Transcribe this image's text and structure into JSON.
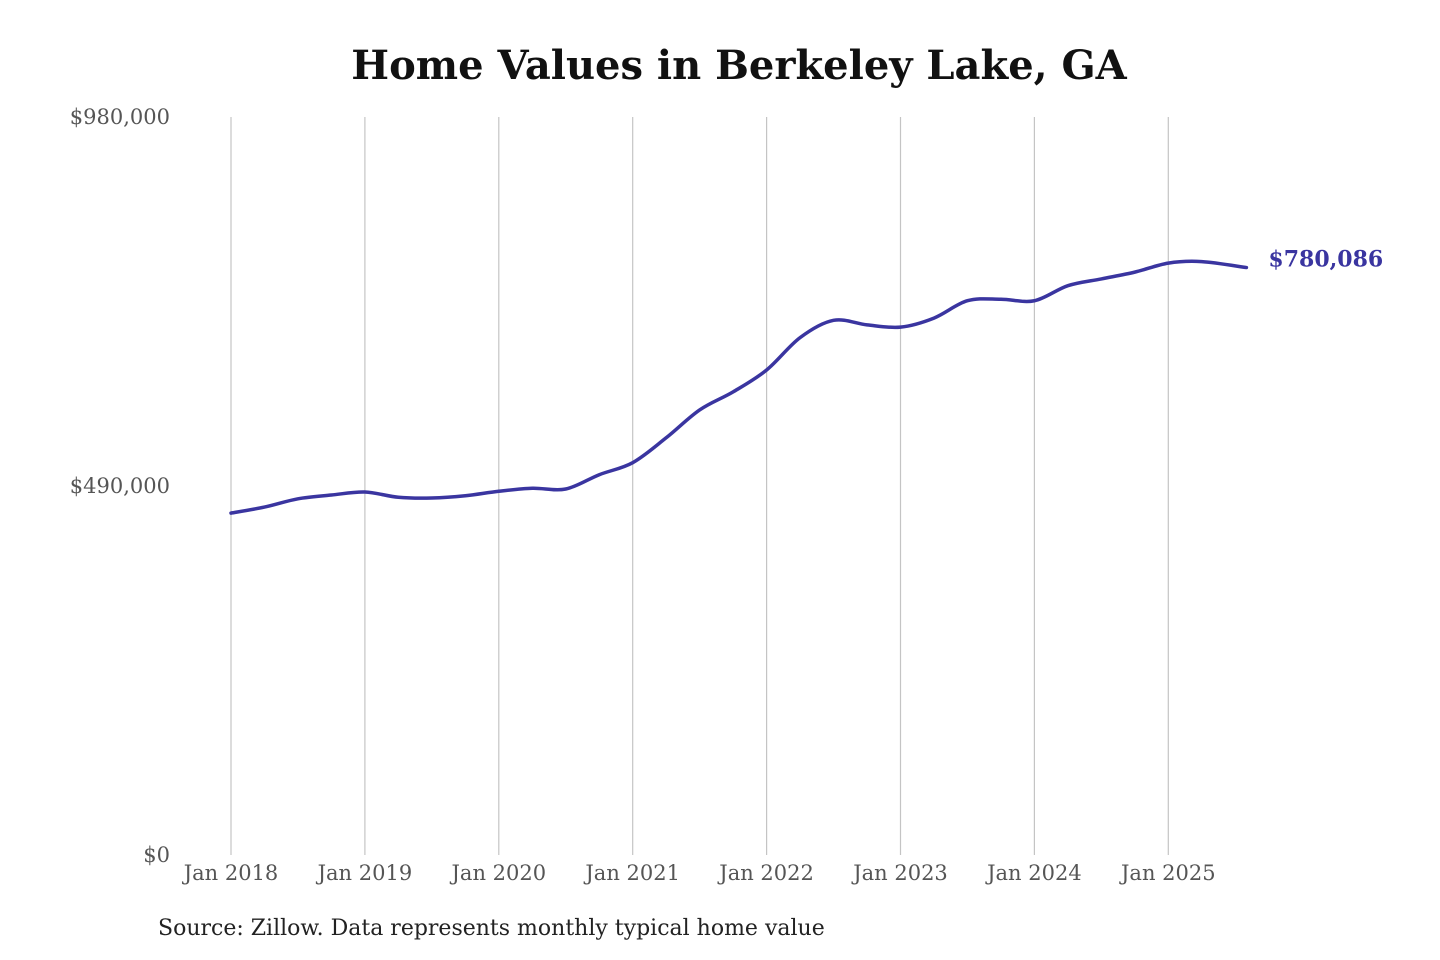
{
  "chart_data": {
    "type": "line",
    "title": "Home Values in Berkeley Lake, GA",
    "source": "Source: Zillow. Data represents monthly typical home value",
    "xlabel": "",
    "ylabel": "",
    "ylim": [
      0,
      980000
    ],
    "y_ticks": [
      {
        "value": 0,
        "label": "$0"
      },
      {
        "value": 490000,
        "label": "$490,000"
      },
      {
        "value": 980000,
        "label": "$980,000"
      }
    ],
    "x_ticks": [
      {
        "value": "2018-01",
        "label": "Jan 2018"
      },
      {
        "value": "2019-01",
        "label": "Jan 2019"
      },
      {
        "value": "2020-01",
        "label": "Jan 2020"
      },
      {
        "value": "2021-01",
        "label": "Jan 2021"
      },
      {
        "value": "2022-01",
        "label": "Jan 2022"
      },
      {
        "value": "2023-01",
        "label": "Jan 2023"
      },
      {
        "value": "2024-01",
        "label": "Jan 2024"
      },
      {
        "value": "2025-01",
        "label": "Jan 2025"
      }
    ],
    "grid": "vertical",
    "line_color": "#3a35a0",
    "end_label": "$780,086",
    "series": [
      {
        "x": [
          "2018-01",
          "2018-04",
          "2018-07",
          "2018-10",
          "2019-01",
          "2019-04",
          "2019-07",
          "2019-10",
          "2020-01",
          "2020-04",
          "2020-07",
          "2020-10",
          "2021-01",
          "2021-04",
          "2021-07",
          "2021-10",
          "2022-01",
          "2022-04",
          "2022-07",
          "2022-10",
          "2023-01",
          "2023-04",
          "2023-07",
          "2023-10",
          "2024-01",
          "2024-04",
          "2024-07",
          "2024-10",
          "2025-01",
          "2025-04",
          "2025-08"
        ],
        "values": [
          454000,
          462000,
          473000,
          478000,
          482000,
          475000,
          474000,
          477000,
          483000,
          487000,
          486000,
          505000,
          521000,
          554000,
          591000,
          615000,
          644000,
          687000,
          710000,
          704000,
          701000,
          713000,
          736000,
          738000,
          736000,
          756000,
          765000,
          774000,
          786000,
          788000,
          780086
        ]
      }
    ]
  }
}
